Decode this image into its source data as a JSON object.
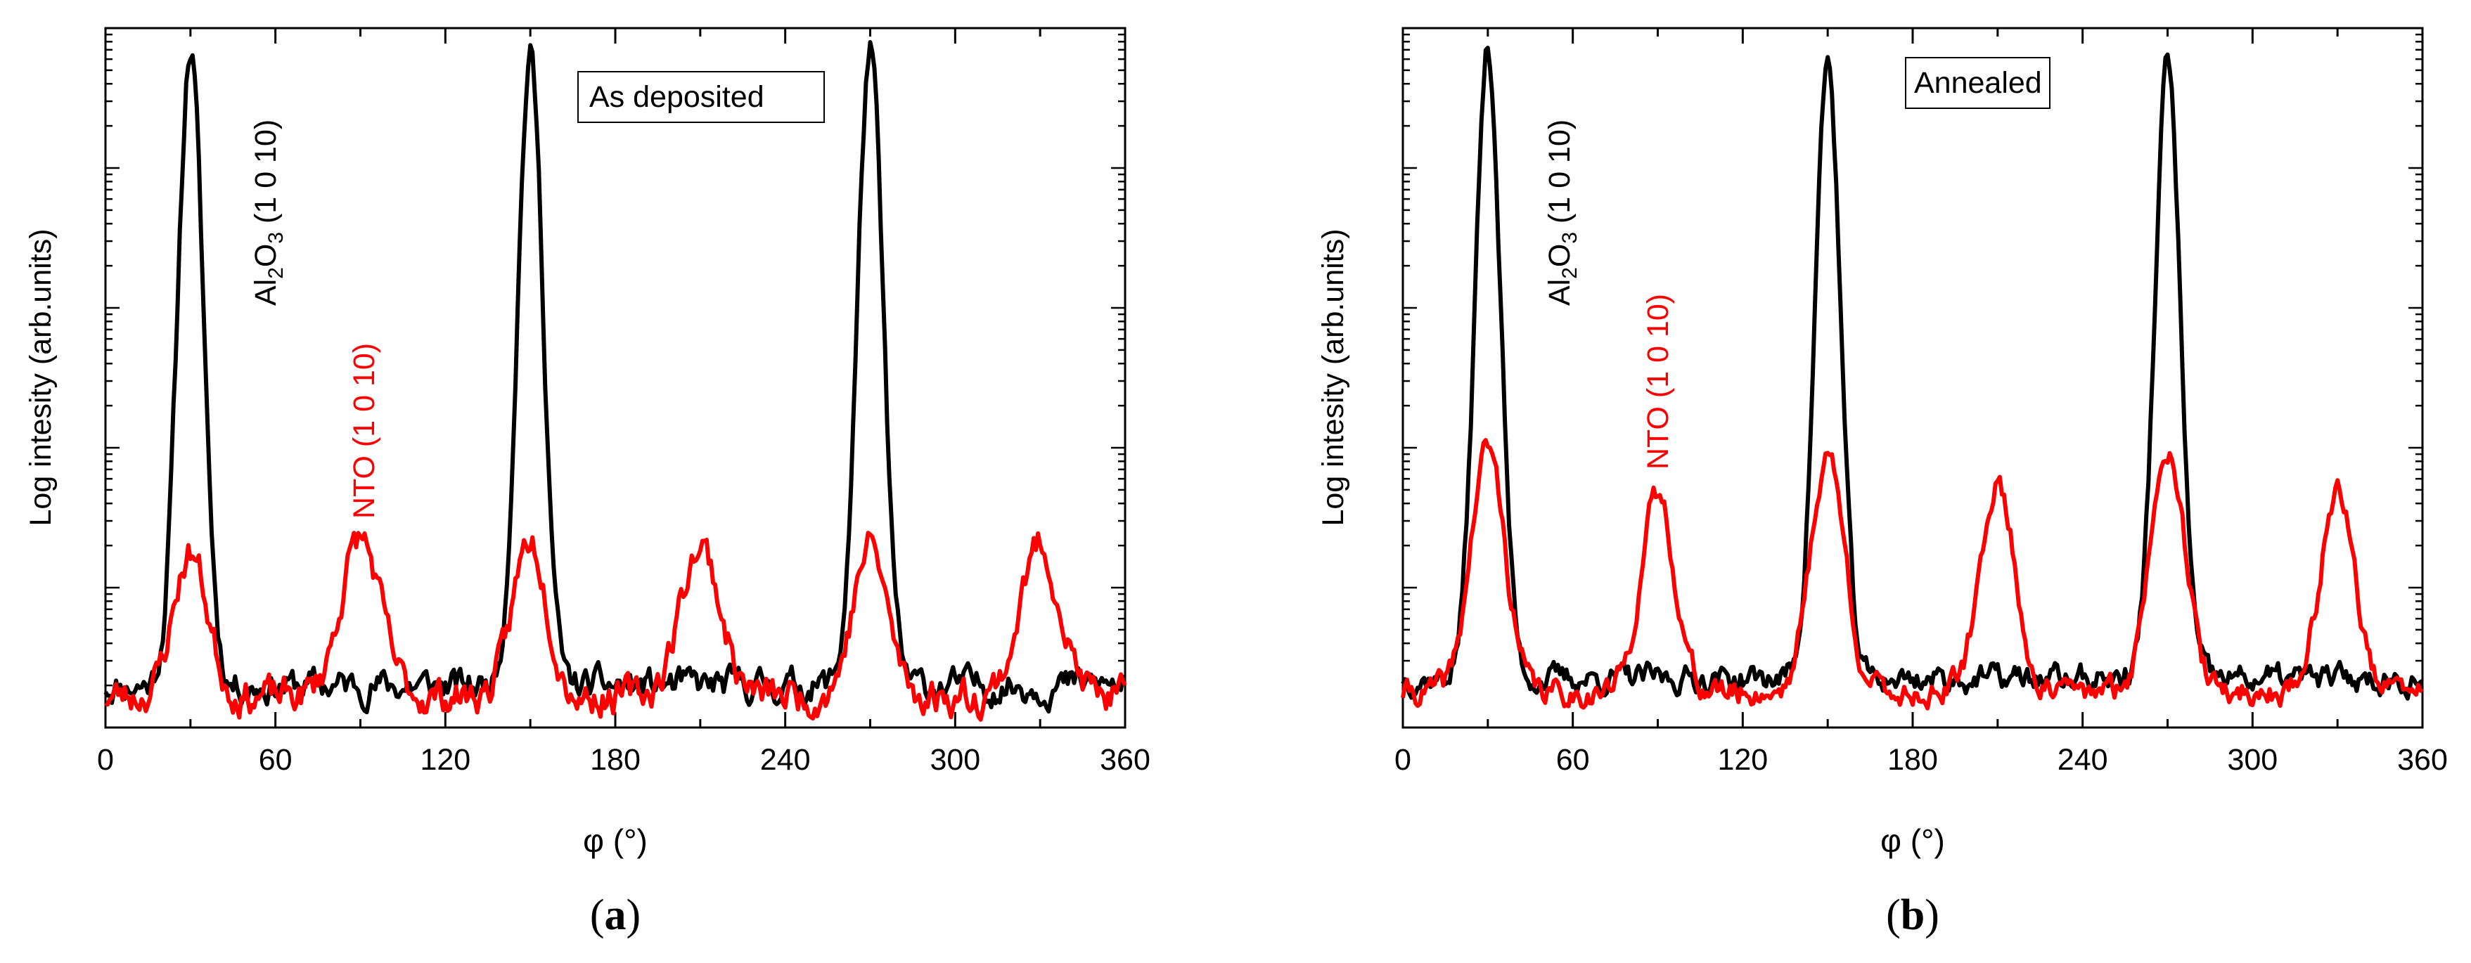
{
  "figure": {
    "panels": [
      {
        "caption_letter": "a",
        "caption_open": "(",
        "caption_close": ")"
      },
      {
        "caption_letter": "b",
        "caption_open": "(",
        "caption_close": ")"
      }
    ]
  },
  "chart_data": [
    {
      "type": "line",
      "title": "As deposited",
      "xlabel": "φ (°)",
      "ylabel": "Log intesity (arb.units)",
      "xlim": [
        0,
        360
      ],
      "ylim": [
        0,
        1
      ],
      "y_scale_note": "logarithmic, no numeric tick labels",
      "xticks": [
        0,
        60,
        120,
        180,
        240,
        300,
        360
      ],
      "xtick_labels": [
        "0",
        "60",
        "120",
        "180",
        "240",
        "300",
        "360"
      ],
      "colors": {
        "Al2O3": "#000000",
        "NTO": "#ff0000"
      },
      "annotations": [
        {
          "series": "Al2O3",
          "text": "Al",
          "sub1": "2",
          "mid": "O",
          "sub2": "3",
          "tail": " (1 0 10)"
        },
        {
          "series": "NTO",
          "text": "NTO (1 0 10)"
        }
      ],
      "series": [
        {
          "name": "Al2O3",
          "color": "#000000",
          "baseline": 0.06,
          "noise": 0.018,
          "seed": 11,
          "peaks": [
            {
              "center": 30,
              "height": 0.97,
              "width": 4.5
            },
            {
              "center": 150,
              "height": 0.96,
              "width": 4.5
            },
            {
              "center": 270,
              "height": 0.97,
              "width": 4.5
            }
          ]
        },
        {
          "name": "NTO",
          "color": "#ff0000",
          "baseline": 0.045,
          "noise": 0.02,
          "seed": 23,
          "peaks": [
            {
              "center": 30,
              "height": 0.25,
              "width": 6
            },
            {
              "center": 90,
              "height": 0.27,
              "width": 7
            },
            {
              "center": 150,
              "height": 0.27,
              "width": 6
            },
            {
              "center": 210,
              "height": 0.26,
              "width": 7
            },
            {
              "center": 270,
              "height": 0.26,
              "width": 6
            },
            {
              "center": 330,
              "height": 0.26,
              "width": 7
            }
          ]
        }
      ]
    },
    {
      "type": "line",
      "title": "Annealed",
      "xlabel": "φ (°)",
      "ylabel": "Log intesity (arb.units)",
      "xlim": [
        0,
        360
      ],
      "ylim": [
        0,
        1
      ],
      "y_scale_note": "logarithmic, no numeric tick labels",
      "xticks": [
        0,
        60,
        120,
        180,
        240,
        300,
        360
      ],
      "xtick_labels": [
        "0",
        "60",
        "120",
        "180",
        "240",
        "300",
        "360"
      ],
      "colors": {
        "Al2O3": "#000000",
        "NTO": "#ff0000"
      },
      "annotations": [
        {
          "series": "Al2O3",
          "text": "Al",
          "sub1": "2",
          "mid": "O",
          "sub2": "3",
          "tail": " (1 0 10)"
        },
        {
          "series": "NTO",
          "text": "NTO (1 0 10)"
        }
      ],
      "series": [
        {
          "name": "Al2O3",
          "color": "#000000",
          "baseline": 0.07,
          "noise": 0.015,
          "seed": 37,
          "peaks": [
            {
              "center": 30,
              "height": 0.97,
              "width": 4.5
            },
            {
              "center": 150,
              "height": 0.95,
              "width": 4.5
            },
            {
              "center": 270,
              "height": 0.95,
              "width": 4.5
            }
          ]
        },
        {
          "name": "NTO",
          "color": "#ff0000",
          "baseline": 0.05,
          "noise": 0.015,
          "seed": 41,
          "peaks": [
            {
              "center": 30,
              "height": 0.4,
              "width": 6
            },
            {
              "center": 90,
              "height": 0.33,
              "width": 6
            },
            {
              "center": 150,
              "height": 0.39,
              "width": 6
            },
            {
              "center": 210,
              "height": 0.35,
              "width": 6
            },
            {
              "center": 270,
              "height": 0.41,
              "width": 6
            },
            {
              "center": 330,
              "height": 0.34,
              "width": 6
            }
          ]
        }
      ]
    }
  ]
}
